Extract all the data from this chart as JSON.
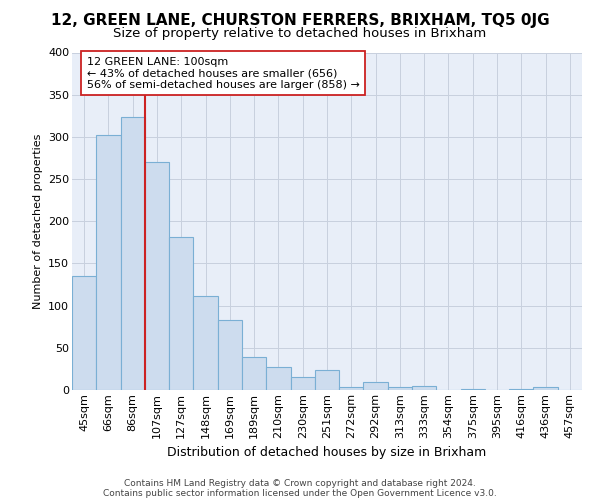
{
  "title1": "12, GREEN LANE, CHURSTON FERRERS, BRIXHAM, TQ5 0JG",
  "title2": "Size of property relative to detached houses in Brixham",
  "xlabel": "Distribution of detached houses by size in Brixham",
  "ylabel": "Number of detached properties",
  "footer1": "Contains HM Land Registry data © Crown copyright and database right 2024.",
  "footer2": "Contains public sector information licensed under the Open Government Licence v3.0.",
  "categories": [
    "45sqm",
    "66sqm",
    "86sqm",
    "107sqm",
    "127sqm",
    "148sqm",
    "169sqm",
    "189sqm",
    "210sqm",
    "230sqm",
    "251sqm",
    "272sqm",
    "292sqm",
    "313sqm",
    "333sqm",
    "354sqm",
    "375sqm",
    "395sqm",
    "416sqm",
    "436sqm",
    "457sqm"
  ],
  "values": [
    135,
    302,
    323,
    270,
    181,
    112,
    83,
    39,
    27,
    15,
    24,
    4,
    10,
    3,
    5,
    0,
    1,
    0,
    1,
    4,
    0
  ],
  "bar_color": "#cddcee",
  "bar_edge_color": "#7aafd4",
  "grid_color": "#c8d0de",
  "annotation_line1": "12 GREEN LANE: 100sqm",
  "annotation_line2": "← 43% of detached houses are smaller (656)",
  "annotation_line3": "56% of semi-detached houses are larger (858) →",
  "vline_color": "#cc2222",
  "annotation_box_color": "#ffffff",
  "annotation_box_edge": "#cc2222",
  "ylim": [
    0,
    400
  ],
  "yticks": [
    0,
    50,
    100,
    150,
    200,
    250,
    300,
    350,
    400
  ],
  "bg_color": "#e8eef8",
  "title1_fontsize": 11,
  "title2_fontsize": 9.5,
  "xlabel_fontsize": 9,
  "ylabel_fontsize": 8,
  "tick_fontsize": 8,
  "footer_fontsize": 6.5
}
